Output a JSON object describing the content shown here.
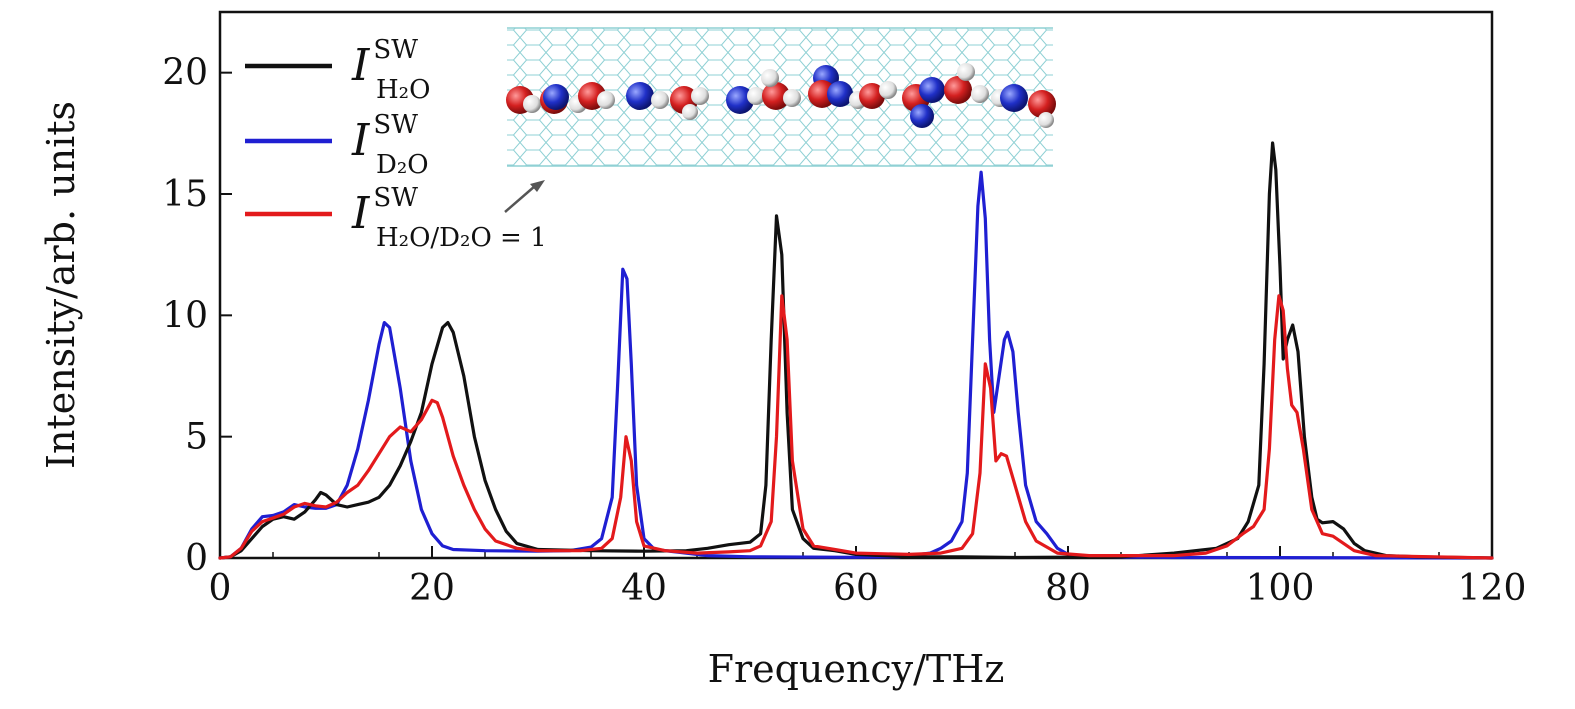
{
  "chart_data": {
    "type": "line",
    "xlabel": "Frequency/THz",
    "ylabel": "Intensity/arb. units",
    "xlim": [
      0,
      120
    ],
    "ylim": [
      0,
      22.5
    ],
    "x_ticks": [
      0,
      20,
      40,
      60,
      80,
      100,
      120
    ],
    "y_ticks": [
      0,
      5,
      10,
      15,
      20
    ],
    "grid": false,
    "legend_position": "top-left",
    "series": [
      {
        "name": "I_H2O^SW",
        "legend": {
          "base": "I",
          "sup": "SW",
          "sub": "H₂O"
        },
        "color": "#111111",
        "points": [
          [
            0,
            0
          ],
          [
            1,
            0.05
          ],
          [
            2,
            0.3
          ],
          [
            3,
            0.8
          ],
          [
            4,
            1.3
          ],
          [
            5,
            1.6
          ],
          [
            6,
            1.7
          ],
          [
            7,
            1.6
          ],
          [
            8,
            1.9
          ],
          [
            9,
            2.4
          ],
          [
            9.5,
            2.7
          ],
          [
            10,
            2.6
          ],
          [
            11,
            2.2
          ],
          [
            12,
            2.1
          ],
          [
            13,
            2.2
          ],
          [
            14,
            2.3
          ],
          [
            15,
            2.5
          ],
          [
            16,
            3.0
          ],
          [
            17,
            3.8
          ],
          [
            18,
            4.8
          ],
          [
            19,
            6.0
          ],
          [
            20,
            8.0
          ],
          [
            21,
            9.5
          ],
          [
            21.5,
            9.7
          ],
          [
            22,
            9.3
          ],
          [
            23,
            7.5
          ],
          [
            24,
            5.0
          ],
          [
            25,
            3.2
          ],
          [
            26,
            2.0
          ],
          [
            27,
            1.1
          ],
          [
            28,
            0.6
          ],
          [
            30,
            0.35
          ],
          [
            35,
            0.3
          ],
          [
            40,
            0.28
          ],
          [
            44,
            0.3
          ],
          [
            46,
            0.4
          ],
          [
            48,
            0.55
          ],
          [
            50,
            0.65
          ],
          [
            51,
            1.0
          ],
          [
            51.5,
            3.0
          ],
          [
            52,
            9.0
          ],
          [
            52.5,
            14.1
          ],
          [
            53,
            12.5
          ],
          [
            53.5,
            6.0
          ],
          [
            54,
            2.0
          ],
          [
            55,
            0.8
          ],
          [
            56,
            0.4
          ],
          [
            58,
            0.3
          ],
          [
            60,
            0.15
          ],
          [
            65,
            0.05
          ],
          [
            70,
            0.05
          ],
          [
            75,
            0.02
          ],
          [
            85,
            0.05
          ],
          [
            90,
            0.2
          ],
          [
            94,
            0.4
          ],
          [
            96,
            0.8
          ],
          [
            97,
            1.5
          ],
          [
            98,
            3.0
          ],
          [
            98.5,
            8.0
          ],
          [
            99,
            15.0
          ],
          [
            99.3,
            17.1
          ],
          [
            99.6,
            16.0
          ],
          [
            100,
            12.0
          ],
          [
            100.3,
            8.2
          ],
          [
            100.7,
            9.0
          ],
          [
            101.2,
            9.6
          ],
          [
            101.7,
            8.5
          ],
          [
            102.3,
            5.0
          ],
          [
            103,
            2.5
          ],
          [
            103.5,
            1.6
          ],
          [
            104,
            1.45
          ],
          [
            105,
            1.5
          ],
          [
            106,
            1.2
          ],
          [
            107,
            0.6
          ],
          [
            108,
            0.3
          ],
          [
            110,
            0.1
          ],
          [
            113,
            0.05
          ],
          [
            120,
            0
          ]
        ]
      },
      {
        "name": "I_D2O^SW",
        "legend": {
          "base": "I",
          "sup": "SW",
          "sub": "D₂O"
        },
        "color": "#1f1fd2",
        "points": [
          [
            0,
            0
          ],
          [
            1,
            0.05
          ],
          [
            2,
            0.4
          ],
          [
            3,
            1.2
          ],
          [
            4,
            1.7
          ],
          [
            5,
            1.75
          ],
          [
            6,
            1.9
          ],
          [
            7,
            2.2
          ],
          [
            8,
            2.1
          ],
          [
            9,
            2.05
          ],
          [
            10,
            2.05
          ],
          [
            11,
            2.2
          ],
          [
            12,
            3.0
          ],
          [
            13,
            4.5
          ],
          [
            14,
            6.5
          ],
          [
            15,
            8.8
          ],
          [
            15.5,
            9.7
          ],
          [
            16,
            9.5
          ],
          [
            17,
            7.0
          ],
          [
            18,
            4.0
          ],
          [
            19,
            2.0
          ],
          [
            20,
            1.0
          ],
          [
            21,
            0.5
          ],
          [
            22,
            0.35
          ],
          [
            25,
            0.3
          ],
          [
            30,
            0.28
          ],
          [
            33,
            0.3
          ],
          [
            35,
            0.45
          ],
          [
            36,
            0.8
          ],
          [
            37,
            2.5
          ],
          [
            37.5,
            7.0
          ],
          [
            38,
            11.9
          ],
          [
            38.4,
            11.5
          ],
          [
            38.8,
            8.0
          ],
          [
            39.3,
            3.0
          ],
          [
            40,
            0.8
          ],
          [
            41,
            0.35
          ],
          [
            43,
            0.25
          ],
          [
            46,
            0.1
          ],
          [
            50,
            0.05
          ],
          [
            60,
            0.03
          ],
          [
            64,
            0.05
          ],
          [
            67,
            0.2
          ],
          [
            68,
            0.4
          ],
          [
            69,
            0.7
          ],
          [
            70,
            1.5
          ],
          [
            70.5,
            3.5
          ],
          [
            71,
            9.0
          ],
          [
            71.5,
            14.5
          ],
          [
            71.8,
            15.9
          ],
          [
            72.2,
            14.0
          ],
          [
            72.6,
            9.0
          ],
          [
            73,
            6.0
          ],
          [
            73.5,
            7.5
          ],
          [
            74,
            9.0
          ],
          [
            74.3,
            9.3
          ],
          [
            74.8,
            8.5
          ],
          [
            75.3,
            6.0
          ],
          [
            76,
            3.0
          ],
          [
            77,
            1.5
          ],
          [
            78,
            1.0
          ],
          [
            79,
            0.4
          ],
          [
            80,
            0.15
          ],
          [
            83,
            0.05
          ],
          [
            90,
            0.02
          ],
          [
            120,
            0
          ]
        ]
      },
      {
        "name": "I_H2O/D2O=1^SW",
        "legend": {
          "base": "I",
          "sup": "SW",
          "sub": "H₂O/D₂O = 1"
        },
        "color": "#e31a1c",
        "points": [
          [
            0,
            0
          ],
          [
            1,
            0.05
          ],
          [
            2,
            0.4
          ],
          [
            3,
            1.1
          ],
          [
            4,
            1.5
          ],
          [
            5,
            1.65
          ],
          [
            6,
            1.8
          ],
          [
            7,
            2.1
          ],
          [
            8,
            2.25
          ],
          [
            9,
            2.15
          ],
          [
            10,
            2.1
          ],
          [
            11,
            2.3
          ],
          [
            12,
            2.7
          ],
          [
            13,
            3.0
          ],
          [
            14,
            3.6
          ],
          [
            15,
            4.3
          ],
          [
            16,
            5.0
          ],
          [
            17,
            5.4
          ],
          [
            18,
            5.2
          ],
          [
            19,
            5.7
          ],
          [
            20,
            6.5
          ],
          [
            20.5,
            6.4
          ],
          [
            21,
            5.8
          ],
          [
            22,
            4.2
          ],
          [
            23,
            3.0
          ],
          [
            24,
            2.0
          ],
          [
            25,
            1.2
          ],
          [
            26,
            0.7
          ],
          [
            28,
            0.4
          ],
          [
            30,
            0.3
          ],
          [
            34,
            0.3
          ],
          [
            36,
            0.4
          ],
          [
            37,
            0.8
          ],
          [
            37.8,
            2.5
          ],
          [
            38.3,
            5.0
          ],
          [
            38.8,
            4.0
          ],
          [
            39.3,
            1.5
          ],
          [
            40,
            0.5
          ],
          [
            42,
            0.3
          ],
          [
            45,
            0.2
          ],
          [
            48,
            0.25
          ],
          [
            50,
            0.3
          ],
          [
            51,
            0.5
          ],
          [
            52,
            1.5
          ],
          [
            52.5,
            5.0
          ],
          [
            53,
            10.8
          ],
          [
            53.5,
            9.0
          ],
          [
            54,
            4.0
          ],
          [
            55,
            1.2
          ],
          [
            56,
            0.5
          ],
          [
            58,
            0.35
          ],
          [
            60,
            0.2
          ],
          [
            65,
            0.15
          ],
          [
            68,
            0.2
          ],
          [
            70,
            0.4
          ],
          [
            71,
            1.0
          ],
          [
            71.7,
            3.5
          ],
          [
            72.2,
            8.0
          ],
          [
            72.7,
            7.0
          ],
          [
            73.2,
            4.0
          ],
          [
            73.7,
            4.3
          ],
          [
            74.2,
            4.2
          ],
          [
            75,
            3.0
          ],
          [
            76,
            1.5
          ],
          [
            77,
            0.7
          ],
          [
            79,
            0.2
          ],
          [
            82,
            0.1
          ],
          [
            90,
            0.1
          ],
          [
            93,
            0.2
          ],
          [
            95,
            0.5
          ],
          [
            96.5,
            1.0
          ],
          [
            97.5,
            1.3
          ],
          [
            98.5,
            2.0
          ],
          [
            99,
            4.5
          ],
          [
            99.5,
            9.0
          ],
          [
            99.9,
            10.8
          ],
          [
            100.3,
            10.2
          ],
          [
            100.7,
            7.8
          ],
          [
            101.1,
            6.3
          ],
          [
            101.6,
            6.0
          ],
          [
            102.2,
            4.5
          ],
          [
            103,
            2.0
          ],
          [
            104,
            1.0
          ],
          [
            105,
            0.9
          ],
          [
            106,
            0.6
          ],
          [
            107,
            0.3
          ],
          [
            109,
            0.1
          ],
          [
            120,
            0
          ]
        ]
      }
    ]
  }
}
